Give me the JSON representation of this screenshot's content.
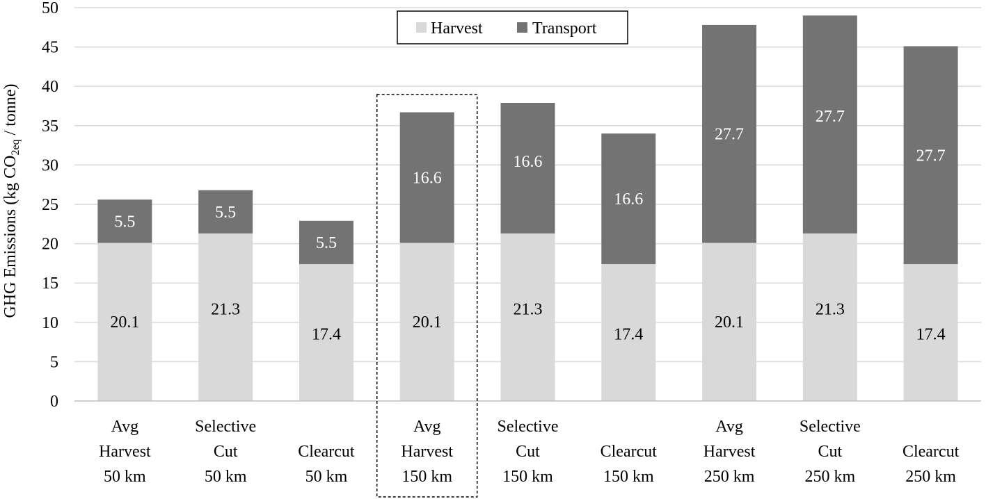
{
  "chart_data": {
    "type": "bar",
    "stacked": true,
    "ylabel_main": "GHG Emissions (kg CO",
    "ylabel_sub": "2eq",
    "ylabel_tail": " / tonne)",
    "ylim": [
      0,
      50
    ],
    "yticks": [
      "0",
      "5",
      "10",
      "15",
      "20",
      "25",
      "30",
      "35",
      "40",
      "45",
      "50"
    ],
    "grid": true,
    "legend_position": "top-center",
    "categories": [
      [
        "Avg",
        "Harvest",
        "50 km"
      ],
      [
        "Selective",
        "Cut",
        "50 km"
      ],
      [
        "Clearcut",
        "50 km"
      ],
      [
        "Avg",
        "Harvest",
        "150 km"
      ],
      [
        "Selective",
        "Cut",
        "150 km"
      ],
      [
        "Clearcut",
        "150 km"
      ],
      [
        "Avg",
        "Harvest",
        "250 km"
      ],
      [
        "Selective",
        "Cut",
        "250 km"
      ],
      [
        "Clearcut",
        "250 km"
      ]
    ],
    "series": [
      {
        "name": "Harvest",
        "color": "#d9d9d9",
        "label_color": "#000000",
        "values": [
          20.1,
          21.3,
          17.4,
          20.1,
          21.3,
          17.4,
          20.1,
          21.3,
          17.4
        ],
        "labels": [
          "20.1",
          "21.3",
          "17.4",
          "20.1",
          "21.3",
          "17.4",
          "20.1",
          "21.3",
          "17.4"
        ]
      },
      {
        "name": "Transport",
        "color": "#737373",
        "label_color": "#ffffff",
        "values": [
          5.5,
          5.5,
          5.5,
          16.6,
          16.6,
          16.6,
          27.7,
          27.7,
          27.7
        ],
        "labels": [
          "5.5",
          "5.5",
          "5.5",
          "16.6",
          "16.6",
          "16.6",
          "27.7",
          "27.7",
          "27.7"
        ]
      }
    ],
    "highlighted_category_index": 3
  }
}
